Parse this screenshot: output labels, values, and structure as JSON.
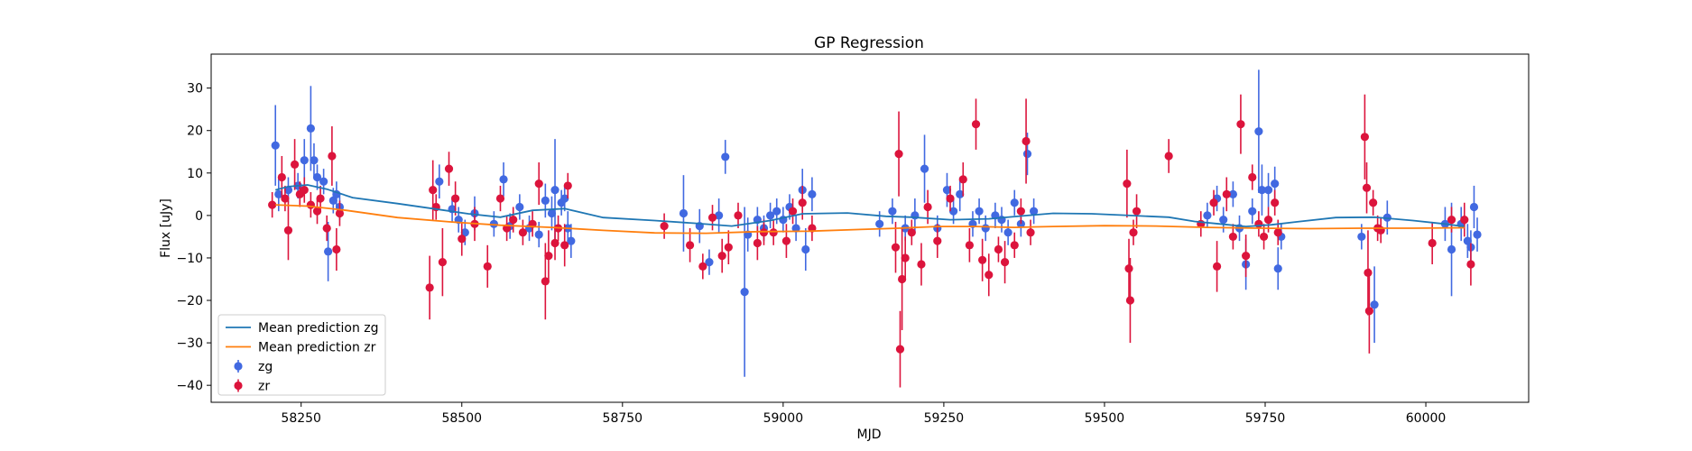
{
  "chart_data": {
    "type": "scatter",
    "title": "GP Regression",
    "xlabel": "MJD",
    "ylabel": "Flux [uJy]",
    "xlim": [
      58110,
      60160
    ],
    "ylim": [
      -44,
      38
    ],
    "xticks": [
      {
        "v": 58250,
        "label": "58250"
      },
      {
        "v": 58500,
        "label": "58500"
      },
      {
        "v": 58750,
        "label": "58750"
      },
      {
        "v": 59000,
        "label": "59000"
      },
      {
        "v": 59250,
        "label": "59250"
      },
      {
        "v": 59500,
        "label": "59500"
      },
      {
        "v": 59750,
        "label": "59750"
      },
      {
        "v": 60000,
        "label": "60000"
      }
    ],
    "yticks": [
      {
        "v": -40,
        "label": "−40"
      },
      {
        "v": -30,
        "label": "−30"
      },
      {
        "v": -20,
        "label": "−20"
      },
      {
        "v": -10,
        "label": "−10"
      },
      {
        "v": 0,
        "label": "0"
      },
      {
        "v": 10,
        "label": "10"
      },
      {
        "v": 20,
        "label": "20"
      },
      {
        "v": 30,
        "label": "30"
      }
    ],
    "grid": false,
    "legend_position": "lower-left",
    "lines": [
      {
        "name": "Mean prediction zg",
        "color": "#1f77b4",
        "x": [
          58210,
          58230,
          58260,
          58290,
          58330,
          58400,
          58460,
          58510,
          58560,
          58610,
          58660,
          58720,
          58800,
          58860,
          58920,
          58980,
          59030,
          59100,
          59160,
          59200,
          59260,
          59320,
          59380,
          59420,
          59480,
          59540,
          59600,
          59640,
          59680,
          59720,
          59760,
          59800,
          59860,
          59920,
          59980,
          60030,
          60060
        ],
        "y": [
          6.0,
          6.8,
          7.2,
          6.2,
          4.2,
          2.8,
          1.5,
          0.4,
          -0.4,
          1.2,
          1.6,
          -0.5,
          -1.2,
          -1.8,
          -2.5,
          -1.2,
          0.4,
          0.6,
          -0.2,
          -0.4,
          -1.0,
          -0.8,
          0.0,
          0.5,
          0.4,
          0.0,
          -0.4,
          -1.4,
          -2.0,
          -2.6,
          -2.2,
          -1.5,
          -0.5,
          -0.4,
          -1.2,
          -2.0,
          -2.6
        ]
      },
      {
        "name": "Mean prediction zr",
        "color": "#ff7f0e",
        "x": [
          58210,
          58260,
          58320,
          58400,
          58480,
          58560,
          58640,
          58720,
          58800,
          58880,
          58960,
          59040,
          59120,
          59180,
          59240,
          59300,
          59360,
          59420,
          59500,
          59580,
          59660,
          59740,
          59820,
          59900,
          59980,
          60060
        ],
        "y": [
          2.5,
          2.2,
          1.2,
          -0.5,
          -1.5,
          -2.3,
          -2.8,
          -3.5,
          -4.1,
          -4.2,
          -3.8,
          -3.7,
          -3.3,
          -3.0,
          -2.6,
          -2.6,
          -2.8,
          -2.6,
          -2.4,
          -2.5,
          -2.8,
          -3.0,
          -3.1,
          -3.0,
          -3.0,
          -2.9
        ]
      }
    ],
    "series": [
      {
        "name": "zg",
        "color": "#4169e1",
        "points": [
          [
            58210,
            16.5,
            9.5
          ],
          [
            58215,
            5,
            4
          ],
          [
            58230,
            6,
            3
          ],
          [
            58245,
            7,
            3
          ],
          [
            58255,
            13,
            5
          ],
          [
            58265,
            20.5,
            10
          ],
          [
            58270,
            13,
            4
          ],
          [
            58275,
            9,
            3
          ],
          [
            58285,
            8,
            3
          ],
          [
            58292,
            -8.5,
            7
          ],
          [
            58300,
            3.5,
            3
          ],
          [
            58305,
            5,
            3
          ],
          [
            58310,
            2,
            3
          ],
          [
            58465,
            8,
            4
          ],
          [
            58485,
            1.5,
            3
          ],
          [
            58495,
            -1,
            3
          ],
          [
            58505,
            -4,
            3
          ],
          [
            58520,
            0.5,
            4
          ],
          [
            58550,
            -2,
            3
          ],
          [
            58565,
            8.5,
            4
          ],
          [
            58575,
            -2.5,
            3
          ],
          [
            58590,
            2,
            3
          ],
          [
            58605,
            -3,
            3
          ],
          [
            58620,
            -4.5,
            3
          ],
          [
            58630,
            3.5,
            4
          ],
          [
            58640,
            0.5,
            4
          ],
          [
            58645,
            6,
            12
          ],
          [
            58655,
            3,
            3
          ],
          [
            58660,
            4,
            3
          ],
          [
            58665,
            -3,
            4
          ],
          [
            58670,
            -6,
            4
          ],
          [
            58845,
            0.5,
            9
          ],
          [
            58870,
            -2.5,
            4
          ],
          [
            58885,
            -11,
            3
          ],
          [
            58900,
            0,
            4
          ],
          [
            58910,
            13.8,
            4
          ],
          [
            58940,
            -18,
            20
          ],
          [
            58945,
            -4.5,
            4
          ],
          [
            58960,
            -1,
            3
          ],
          [
            58970,
            -3,
            3
          ],
          [
            58980,
            0,
            3
          ],
          [
            58990,
            1,
            3
          ],
          [
            59000,
            -1,
            3
          ],
          [
            59010,
            2,
            3
          ],
          [
            59020,
            -3,
            3
          ],
          [
            59030,
            6,
            5
          ],
          [
            59035,
            -8,
            5
          ],
          [
            59045,
            5,
            4
          ],
          [
            59150,
            -2,
            3
          ],
          [
            59170,
            1,
            3
          ],
          [
            59190,
            -3,
            3
          ],
          [
            59205,
            0,
            4
          ],
          [
            59220,
            11,
            8
          ],
          [
            59240,
            -3,
            3
          ],
          [
            59255,
            6,
            4
          ],
          [
            59265,
            1,
            3
          ],
          [
            59275,
            5,
            4
          ],
          [
            59295,
            -2,
            3
          ],
          [
            59305,
            1,
            3
          ],
          [
            59315,
            -3,
            3
          ],
          [
            59330,
            0,
            3
          ],
          [
            59340,
            -1,
            3
          ],
          [
            59350,
            -4,
            3
          ],
          [
            59360,
            3,
            3
          ],
          [
            59370,
            -2,
            3
          ],
          [
            59380,
            14.5,
            5
          ],
          [
            59390,
            1,
            3
          ],
          [
            59660,
            0,
            3
          ],
          [
            59675,
            4,
            3
          ],
          [
            59685,
            -1,
            3
          ],
          [
            59700,
            5,
            3
          ],
          [
            59710,
            -3,
            3
          ],
          [
            59720,
            -11.5,
            6
          ],
          [
            59730,
            1,
            3
          ],
          [
            59740,
            19.8,
            14.5
          ],
          [
            59745,
            6,
            6
          ],
          [
            59755,
            6,
            4
          ],
          [
            59765,
            7.5,
            4
          ],
          [
            59770,
            -12.5,
            5
          ],
          [
            59775,
            -5,
            3
          ],
          [
            59900,
            -5,
            3
          ],
          [
            59920,
            -21,
            9
          ],
          [
            59940,
            -0.5,
            4
          ],
          [
            60030,
            -2,
            4
          ],
          [
            60040,
            -8,
            11
          ],
          [
            60055,
            -2,
            4
          ],
          [
            60065,
            -6,
            4
          ],
          [
            60070,
            -7.5,
            4
          ],
          [
            60075,
            2,
            5
          ],
          [
            60080,
            -4.5,
            4
          ]
        ]
      },
      {
        "name": "zr",
        "color": "#dc143c",
        "points": [
          [
            58205,
            2.5,
            3
          ],
          [
            58220,
            9,
            5
          ],
          [
            58225,
            4,
            3
          ],
          [
            58230,
            -3.5,
            7
          ],
          [
            58240,
            12,
            6
          ],
          [
            58248,
            5,
            3
          ],
          [
            58255,
            6,
            3
          ],
          [
            58265,
            2.5,
            3
          ],
          [
            58275,
            1,
            3
          ],
          [
            58280,
            4,
            3
          ],
          [
            58290,
            -3,
            3
          ],
          [
            58298,
            14,
            7
          ],
          [
            58305,
            -8,
            5
          ],
          [
            58310,
            0.5,
            3
          ],
          [
            58450,
            -17,
            7.5
          ],
          [
            58455,
            6,
            7
          ],
          [
            58460,
            2,
            3
          ],
          [
            58470,
            -11,
            8
          ],
          [
            58480,
            11,
            4
          ],
          [
            58490,
            4,
            4
          ],
          [
            58500,
            -5.5,
            4
          ],
          [
            58520,
            -2,
            4
          ],
          [
            58540,
            -12,
            5
          ],
          [
            58560,
            4,
            3
          ],
          [
            58570,
            -3,
            3
          ],
          [
            58580,
            -1,
            3
          ],
          [
            58595,
            -4,
            3
          ],
          [
            58610,
            -2,
            3
          ],
          [
            58620,
            7.5,
            5
          ],
          [
            58630,
            -15.5,
            9
          ],
          [
            58635,
            -9.5,
            6
          ],
          [
            58645,
            -6.5,
            4
          ],
          [
            58650,
            -3,
            3
          ],
          [
            58660,
            -7,
            5
          ],
          [
            58665,
            7,
            3
          ],
          [
            58815,
            -2.5,
            3
          ],
          [
            58855,
            -7,
            4
          ],
          [
            58875,
            -12,
            3
          ],
          [
            58890,
            -0.5,
            3
          ],
          [
            58905,
            -9.5,
            4
          ],
          [
            58915,
            -7.5,
            4
          ],
          [
            58930,
            0,
            3
          ],
          [
            58960,
            -6.5,
            4
          ],
          [
            58970,
            -4,
            3
          ],
          [
            58985,
            -4,
            3
          ],
          [
            59005,
            -6,
            4
          ],
          [
            59015,
            1,
            3
          ],
          [
            59030,
            3,
            4
          ],
          [
            59045,
            -3,
            3
          ],
          [
            59175,
            -7.5,
            6
          ],
          [
            59180,
            14.5,
            10
          ],
          [
            59182,
            -31.5,
            9
          ],
          [
            59185,
            -15,
            12
          ],
          [
            59190,
            -10,
            5
          ],
          [
            59200,
            -4,
            3
          ],
          [
            59215,
            -11.5,
            5
          ],
          [
            59225,
            2,
            4
          ],
          [
            59240,
            -6,
            4
          ],
          [
            59260,
            4,
            3
          ],
          [
            59280,
            8.5,
            4
          ],
          [
            59290,
            -7,
            4
          ],
          [
            59300,
            21.5,
            6
          ],
          [
            59310,
            -10.5,
            5
          ],
          [
            59320,
            -14,
            5
          ],
          [
            59335,
            -8,
            3
          ],
          [
            59345,
            -11,
            5
          ],
          [
            59360,
            -7,
            3
          ],
          [
            59370,
            1,
            3
          ],
          [
            59378,
            17.5,
            10
          ],
          [
            59385,
            -4,
            3
          ],
          [
            59535,
            7.5,
            8
          ],
          [
            59538,
            -12.5,
            7
          ],
          [
            59540,
            -20,
            10
          ],
          [
            59545,
            -4,
            3
          ],
          [
            59550,
            1,
            4
          ],
          [
            59600,
            14,
            4
          ],
          [
            59650,
            -2,
            3
          ],
          [
            59670,
            3,
            3
          ],
          [
            59675,
            -12,
            6
          ],
          [
            59690,
            5,
            4
          ],
          [
            59700,
            -5,
            3
          ],
          [
            59712,
            21.5,
            7
          ],
          [
            59720,
            -9.5,
            5
          ],
          [
            59730,
            9,
            3
          ],
          [
            59740,
            -2,
            3
          ],
          [
            59748,
            -5,
            3
          ],
          [
            59755,
            -1,
            3
          ],
          [
            59765,
            3,
            3
          ],
          [
            59770,
            -4,
            3
          ],
          [
            59905,
            18.5,
            10
          ],
          [
            59908,
            6.5,
            6
          ],
          [
            59910,
            -13.5,
            10
          ],
          [
            59912,
            -22.5,
            10
          ],
          [
            59918,
            3,
            3
          ],
          [
            59925,
            -3,
            3
          ],
          [
            59930,
            -3.5,
            3
          ],
          [
            60010,
            -6.5,
            5
          ],
          [
            60040,
            -1,
            3
          ],
          [
            60060,
            -1,
            4
          ],
          [
            60070,
            -11.5,
            5
          ]
        ]
      }
    ]
  }
}
